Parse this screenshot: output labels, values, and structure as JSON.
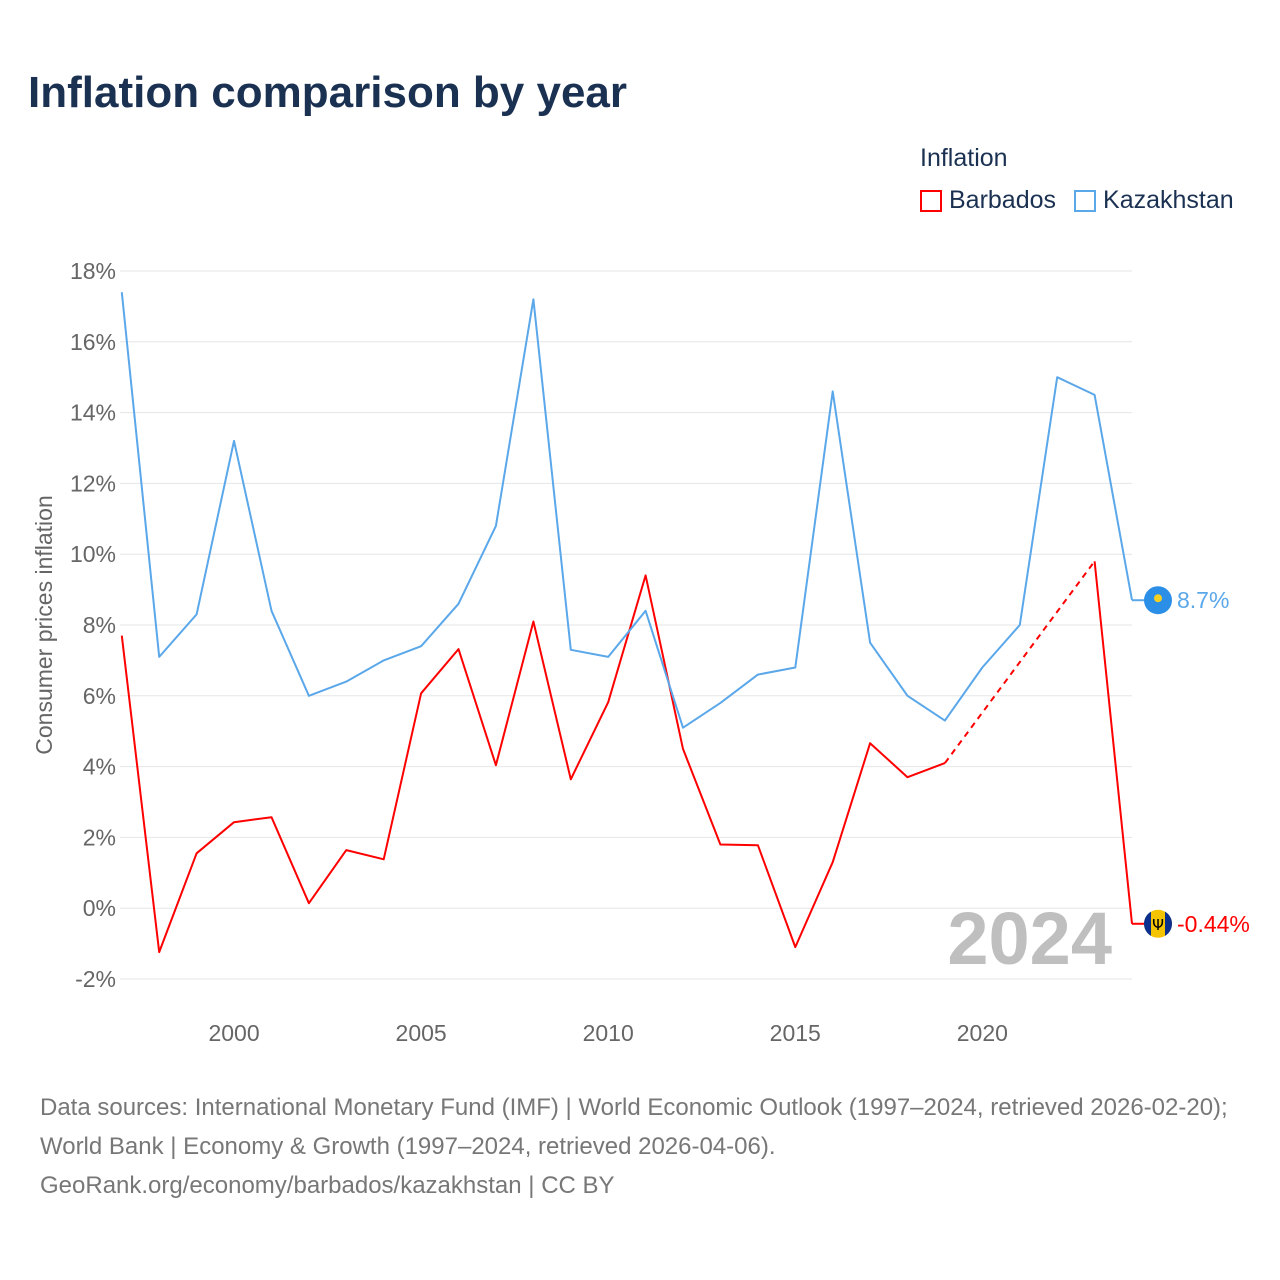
{
  "chart_data": {
    "type": "line",
    "title": "Inflation comparison by year",
    "xlabel": "",
    "ylabel": "Consumer prices inflation",
    "legend_title": "Inflation",
    "legend_position": "top-right",
    "ylim": [
      -2,
      18
    ],
    "xlim": [
      1997,
      2024
    ],
    "yticks": [
      -2,
      0,
      2,
      4,
      6,
      8,
      10,
      12,
      14,
      16,
      18
    ],
    "ytick_labels": [
      "-2%",
      "0%",
      "2%",
      "4%",
      "6%",
      "8%",
      "10%",
      "12%",
      "14%",
      "16%",
      "18%"
    ],
    "xticks": [
      2000,
      2005,
      2010,
      2015,
      2020
    ],
    "xtick_labels": [
      "2000",
      "2005",
      "2010",
      "2015",
      "2020"
    ],
    "grid": true,
    "watermark_year": "2024",
    "x": [
      1997,
      1998,
      1999,
      2000,
      2001,
      2002,
      2003,
      2004,
      2005,
      2006,
      2007,
      2008,
      2009,
      2010,
      2011,
      2012,
      2013,
      2014,
      2015,
      2016,
      2017,
      2018,
      2019,
      2020,
      2021,
      2022,
      2023,
      2024
    ],
    "series": [
      {
        "name": "Barbados",
        "color": "#ff0000",
        "end_label": "-0.44%",
        "values": [
          7.7,
          -1.24,
          1.55,
          2.43,
          2.57,
          0.14,
          1.64,
          1.38,
          6.07,
          7.32,
          4.04,
          8.1,
          3.64,
          5.82,
          9.4,
          4.5,
          1.8,
          1.78,
          -1.1,
          1.3,
          4.66,
          3.7,
          4.1,
          null,
          null,
          null,
          9.8,
          -0.44
        ]
      },
      {
        "name": "Kazakhstan",
        "color": "#5aa7ea",
        "end_label": "8.7%",
        "values": [
          17.4,
          7.1,
          8.3,
          13.2,
          8.4,
          6.0,
          6.4,
          7.0,
          7.4,
          8.6,
          10.8,
          17.2,
          7.3,
          7.1,
          8.4,
          5.1,
          5.8,
          6.6,
          6.8,
          14.6,
          7.5,
          6.0,
          5.3,
          6.8,
          8.0,
          15.0,
          14.5,
          8.7
        ]
      }
    ]
  },
  "footer": {
    "sources": "Data sources: International Monetary Fund (IMF) | World Economic Outlook (1997–2024, retrieved 2026-02-20); World Bank | Economy & Growth (1997–2024, retrieved 2026-04-06).",
    "credit": "GeoRank.org/economy/barbados/kazakhstan | CC BY"
  }
}
